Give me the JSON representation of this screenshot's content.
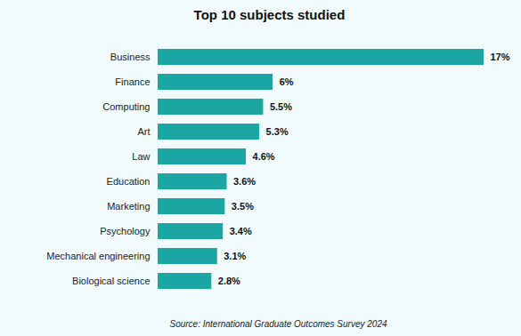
{
  "chart_data": {
    "type": "bar",
    "title": "Top 10 subjects studied",
    "caption": "Source: International Graduate Outcomes Survey 2024",
    "categories": [
      "Business",
      "Finance",
      "Computing",
      "Art",
      "Law",
      "Education",
      "Marketing",
      "Psychology",
      "Mechanical engineering",
      "Biological science"
    ],
    "values": [
      17,
      6,
      5.5,
      5.3,
      4.6,
      3.6,
      3.5,
      3.4,
      3.1,
      2.8
    ],
    "value_labels": [
      "17%",
      "6%",
      "5.5%",
      "5.3%",
      "4.6%",
      "3.6%",
      "3.5%",
      "3.4%",
      "3.1%",
      "2.8%"
    ],
    "color": "#1ba6a3",
    "orientation": "horizontal",
    "data_labels": true,
    "tick_labels": "y",
    "grid": false
  }
}
